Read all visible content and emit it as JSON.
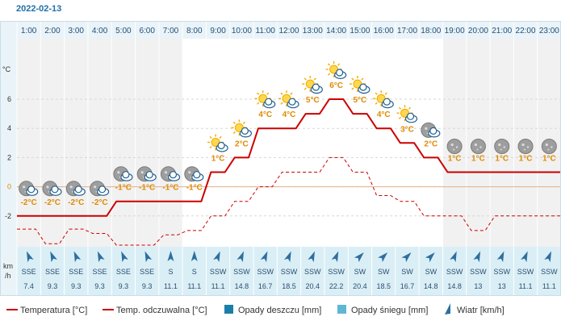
{
  "date": "2022-02-13",
  "chart_data": {
    "type": "line",
    "hours": [
      "1:00",
      "2:00",
      "3:00",
      "4:00",
      "5:00",
      "6:00",
      "7:00",
      "8:00",
      "9:00",
      "10:00",
      "11:00",
      "12:00",
      "13:00",
      "14:00",
      "15:00",
      "16:00",
      "17:00",
      "18:00",
      "19:00",
      "20:00",
      "21:00",
      "22:00",
      "23:00"
    ],
    "y_axis": {
      "unit": "°C",
      "ticks": [
        6,
        4,
        2,
        0,
        -2
      ],
      "ylim": [
        -4,
        8
      ]
    },
    "series": [
      {
        "name": "Temperatura [°C]",
        "color": "#cc0000",
        "style": "solid",
        "values": [
          -2,
          -2,
          -2,
          -2,
          -1,
          -1,
          -1,
          -1,
          1,
          2,
          4,
          4,
          5,
          6,
          5,
          4,
          3,
          2,
          1,
          1,
          1,
          1,
          1
        ]
      },
      {
        "name": "Temp. odczuwalna [°C]",
        "color": "#cc0000",
        "style": "dashed",
        "values": [
          -2.9,
          -3.9,
          -2.9,
          -3.2,
          -4,
          -4,
          -3.3,
          -3,
          -2,
          -1,
          0,
          1,
          1,
          2,
          1,
          -0.6,
          -1,
          -2,
          -2,
          -3,
          -2,
          -2,
          -2
        ]
      },
      {
        "name": "Opady deszczu [mm]",
        "color": "#1a7fa8",
        "style": "bar",
        "values": []
      },
      {
        "name": "Opady śniegu [mm]",
        "color": "#5fb7d4",
        "style": "bar",
        "values": []
      }
    ],
    "temp_labels": [
      "-2°C",
      "-2°C",
      "-2°C",
      "-2°C",
      "-1°C",
      "-1°C",
      "-1°C",
      "-1°C",
      "1°C",
      "2°C",
      "4°C",
      "4°C",
      "5°C",
      "6°C",
      "5°C",
      "4°C",
      "3°C",
      "2°C",
      "1°C",
      "1°C",
      "1°C",
      "1°C",
      "1°C"
    ],
    "icons": [
      "night-cloudy-icon",
      "night-cloudy-icon",
      "night-cloudy-icon",
      "night-cloudy-icon",
      "night-cloudy-icon",
      "night-cloudy-icon",
      "night-cloudy-icon",
      "night-cloudy-icon",
      "sun-cloud-icon",
      "sun-cloud-icon",
      "sun-cloud-icon",
      "sun-cloud-icon",
      "sun-cloud-icon",
      "sun-cloud-icon",
      "sun-cloud-icon",
      "sun-cloud-icon",
      "sun-cloud-icon",
      "night-cloudy-icon",
      "moon-icon",
      "moon-icon",
      "moon-icon",
      "moon-icon",
      "moon-icon"
    ],
    "wind": {
      "unit_top": "km",
      "unit_bottom": "/h",
      "legend_label": "Wiatr [km/h]",
      "directions": [
        "SSE",
        "SSE",
        "SSE",
        "SSE",
        "SSE",
        "SSE",
        "S",
        "S",
        "SSW",
        "SSW",
        "SSW",
        "SSW",
        "SSW",
        "SSW",
        "SW",
        "SW",
        "SW",
        "SW",
        "SSW",
        "SSW",
        "SSW",
        "SSW",
        "SSW"
      ],
      "speeds": [
        "7.4",
        "9.3",
        "9.3",
        "9.3",
        "9.3",
        "9.3",
        "11.1",
        "11.1",
        "11.1",
        "14.8",
        "16.7",
        "18.5",
        "20.4",
        "22.2",
        "20.4",
        "18.5",
        "16.7",
        "14.8",
        "14.8",
        "13",
        "13",
        "11.1",
        "11.1"
      ]
    },
    "night_columns": [
      1,
      2,
      3,
      4,
      5,
      6,
      7,
      19,
      20,
      21,
      22,
      23
    ],
    "zero_line": true,
    "grid": true,
    "legend_position": "bottom"
  },
  "colors": {
    "date": "#1f6ea9",
    "hour_text": "#1f4f7a",
    "temp_line": "#cc0000",
    "temp_label": "#e08a00",
    "zero_line": "#e3b28a",
    "header_bg": "#eaf3f8",
    "wind_bg": "#daeef6",
    "wind_arrow": "#2e6f9e",
    "night_bg": "#f1f1f1",
    "day_bg": "#ffffff"
  }
}
